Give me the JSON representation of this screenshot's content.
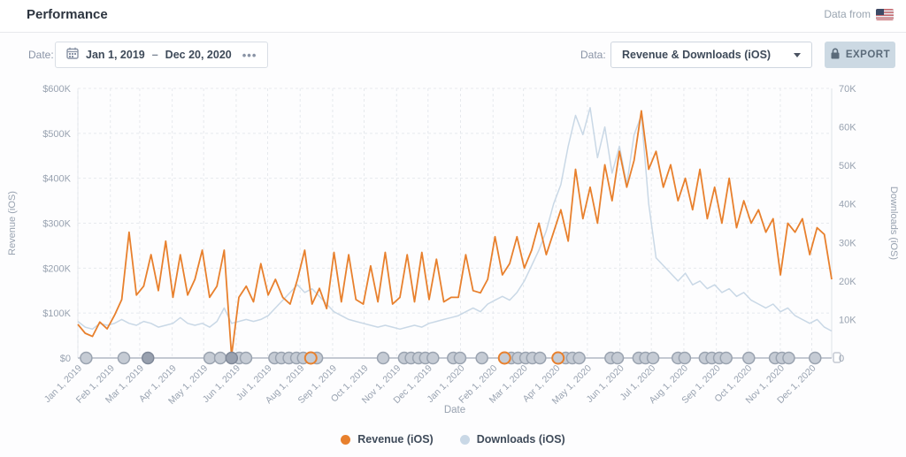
{
  "header": {
    "title": "Performance",
    "data_from_label": "Data from"
  },
  "toolbar": {
    "date_label": "Date:",
    "date_start": "Jan 1, 2019",
    "date_separator": "–",
    "date_end": "Dec 20, 2020",
    "more_dots": "•••",
    "data_label": "Data:",
    "data_select_value": "Revenue & Downloads (iOS)",
    "export_label": "EXPORT"
  },
  "colors": {
    "revenue": "#e8802d",
    "downloads": "#c9d8e6",
    "grid": "#e6e9ed",
    "edge_line": "#dfe3e8",
    "baseline": "#c4c9d2",
    "axis_text": "#98a2b0",
    "marker_fill": "#c5cbd4",
    "marker_stroke": "#9aa3b0",
    "marker_dark_fill": "#99a1af",
    "marker_dark_stroke": "#7f8898",
    "export_bg": "#ccd9e3",
    "export_text": "#5b6b7a"
  },
  "chart_data": {
    "type": "line",
    "xlabel": "Date",
    "x_span_days": 719,
    "x_tick_labels": [
      "Jan 1, 2019",
      "Feb 1, 2019",
      "Mar 1, 2019",
      "Apr 1, 2019",
      "May 1, 2019",
      "Jun 1, 2019",
      "Jul 1, 2019",
      "Aug 1, 2019",
      "Sep 1, 2019",
      "Oct 1, 2019",
      "Nov 1, 2019",
      "Dec 1, 2019",
      "Jan 1, 2020",
      "Feb 1, 2020",
      "Mar 1, 2020",
      "Apr 1, 2020",
      "May 1, 2020",
      "Jun 1, 2020",
      "Jul 1, 2020",
      "Aug 1, 2020",
      "Sep 1, 2020",
      "Oct 1, 2020",
      "Nov 1, 2020",
      "Dec 1, 2020"
    ],
    "x_tick_offsets": [
      0,
      31,
      59,
      90,
      120,
      151,
      181,
      212,
      243,
      273,
      304,
      334,
      365,
      396,
      425,
      456,
      486,
      517,
      547,
      578,
      609,
      639,
      670,
      700
    ],
    "y_left": {
      "label": "Revenue (iOS)",
      "min": 0,
      "max": 600000,
      "ticks": [
        "$600K",
        "$500K",
        "$400K",
        "$300K",
        "$200K",
        "$100K",
        "$0"
      ]
    },
    "y_right": {
      "label": "Downloads (iOS)",
      "min": 0,
      "max": 70000,
      "ticks": [
        "70K",
        "60K",
        "50K",
        "40K",
        "30K",
        "20K",
        "10K",
        "0"
      ]
    },
    "legend": [
      "Revenue (iOS)",
      "Downloads (iOS)"
    ],
    "series": [
      {
        "name": "Revenue (iOS)",
        "axis": "left",
        "color": "#e8802d",
        "values": [
          75000,
          55000,
          48000,
          80000,
          65000,
          95000,
          130000,
          280000,
          140000,
          160000,
          230000,
          150000,
          260000,
          135000,
          230000,
          140000,
          175000,
          240000,
          135000,
          160000,
          240000,
          5000,
          135000,
          160000,
          125000,
          210000,
          140000,
          175000,
          135000,
          120000,
          175000,
          240000,
          120000,
          155000,
          110000,
          235000,
          125000,
          230000,
          130000,
          120000,
          205000,
          125000,
          235000,
          120000,
          135000,
          230000,
          125000,
          235000,
          130000,
          220000,
          125000,
          135000,
          135000,
          230000,
          150000,
          145000,
          175000,
          270000,
          185000,
          210000,
          270000,
          200000,
          240000,
          300000,
          230000,
          280000,
          330000,
          260000,
          420000,
          310000,
          380000,
          300000,
          430000,
          350000,
          460000,
          380000,
          440000,
          550000,
          420000,
          460000,
          380000,
          430000,
          350000,
          400000,
          330000,
          420000,
          310000,
          380000,
          300000,
          400000,
          290000,
          350000,
          300000,
          330000,
          280000,
          310000,
          185000,
          300000,
          280000,
          310000,
          230000,
          290000,
          275000,
          175000
        ]
      },
      {
        "name": "Downloads (iOS)",
        "axis": "right",
        "color": "#c9d8e6",
        "values": [
          9500,
          8000,
          7500,
          9000,
          8500,
          9000,
          10000,
          9000,
          8500,
          9500,
          9000,
          8000,
          8500,
          9000,
          10500,
          9000,
          8500,
          9000,
          8000,
          9500,
          13000,
          9000,
          9500,
          10000,
          9500,
          10000,
          11000,
          13000,
          15000,
          17000,
          19000,
          17000,
          18000,
          16000,
          14000,
          12000,
          11000,
          10000,
          9500,
          9000,
          8500,
          8000,
          8500,
          8000,
          7500,
          8000,
          8500,
          8000,
          9000,
          9500,
          10000,
          10500,
          11000,
          12000,
          13000,
          12000,
          14000,
          15000,
          16000,
          15000,
          17000,
          20000,
          24000,
          28000,
          33000,
          40000,
          45000,
          55000,
          63000,
          58000,
          65000,
          52000,
          60000,
          48000,
          55000,
          45000,
          58000,
          63000,
          40000,
          26000,
          24000,
          22000,
          20000,
          22000,
          19000,
          20000,
          18000,
          19000,
          17000,
          18000,
          16000,
          17000,
          15000,
          14000,
          13000,
          14000,
          12000,
          13000,
          11000,
          10000,
          9000,
          10000,
          8000,
          7000
        ]
      }
    ],
    "event_markers": {
      "gray": [
        0.011,
        0.061,
        0.175,
        0.189,
        0.214,
        0.223,
        0.261,
        0.27,
        0.28,
        0.29,
        0.299,
        0.317,
        0.405,
        0.433,
        0.442,
        0.452,
        0.461,
        0.471,
        0.498,
        0.507,
        0.536,
        0.575,
        0.584,
        0.594,
        0.603,
        0.613,
        0.647,
        0.656,
        0.665,
        0.707,
        0.716,
        0.744,
        0.753,
        0.763,
        0.796,
        0.805,
        0.832,
        0.841,
        0.851,
        0.86,
        0.89,
        0.925,
        0.934,
        0.943,
        0.978
      ],
      "dark": [
        0.093,
        0.204
      ],
      "orange_ring": [
        0.309,
        0.566,
        0.637
      ]
    }
  }
}
